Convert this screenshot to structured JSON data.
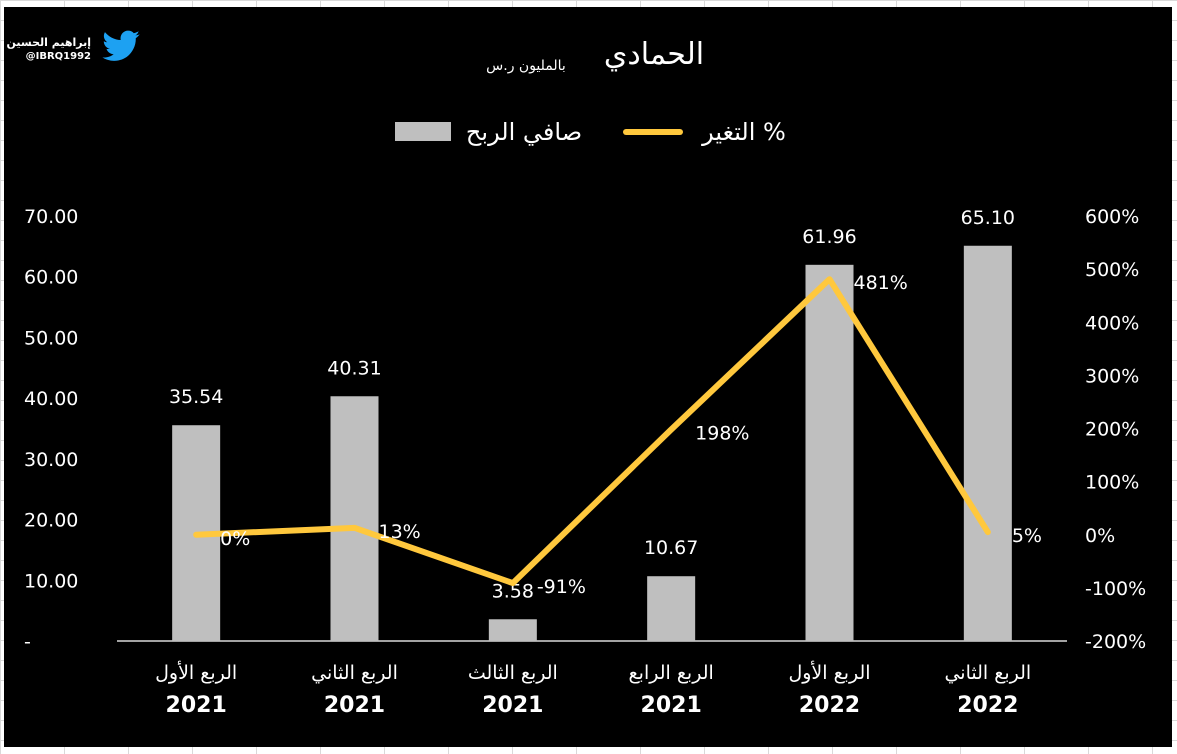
{
  "watermark": {
    "name": "إبراهيم الحسين",
    "handle": "@IBRQ1992",
    "icon": "twitter-bird-icon"
  },
  "chart_data": {
    "type": "bar",
    "title": "الحمادي",
    "subtitle": "بالمليون ر.س",
    "categories": [
      {
        "quarter": "الربع الأول",
        "year": "2021"
      },
      {
        "quarter": "الربع الثاني",
        "year": "2021"
      },
      {
        "quarter": "الربع الثالث",
        "year": "2021"
      },
      {
        "quarter": "الربع الرابع",
        "year": "2021"
      },
      {
        "quarter": "الربع الأول",
        "year": "2022"
      },
      {
        "quarter": "الربع الثاني",
        "year": "2022"
      }
    ],
    "series": [
      {
        "name": "صافي الربح",
        "type": "bar",
        "axis": "left",
        "color": "#bfbfbf",
        "values": [
          35.54,
          40.31,
          3.58,
          10.67,
          61.96,
          65.1
        ],
        "labels": [
          "35.54",
          "40.31",
          "3.58",
          "10.67",
          "61.96",
          "65.10"
        ]
      },
      {
        "name": "التغير %",
        "type": "line",
        "axis": "right",
        "color": "#ffc83d",
        "values": [
          0,
          13,
          -91,
          198,
          481,
          5
        ],
        "labels": [
          "0%",
          "13%",
          "-91%",
          "198%",
          "481%",
          "5%"
        ]
      }
    ],
    "y_left": {
      "min": 0,
      "max": 70,
      "step": 10,
      "tick_labels": [
        "-",
        "10.00",
        "20.00",
        "30.00",
        "40.00",
        "50.00",
        "60.00",
        "70.00"
      ]
    },
    "y_right": {
      "min": -200,
      "max": 600,
      "step": 100,
      "tick_labels": [
        "-200%",
        "-100%",
        "0%",
        "100%",
        "200%",
        "300%",
        "400%",
        "500%",
        "600%"
      ]
    },
    "legend": {
      "position": "top",
      "entries": [
        "صافي الربح",
        "التغير %"
      ]
    },
    "grid": false,
    "colors": {
      "background": "#000000",
      "text": "#ffffff",
      "bar": "#bfbfbf",
      "line": "#ffc83d"
    }
  }
}
